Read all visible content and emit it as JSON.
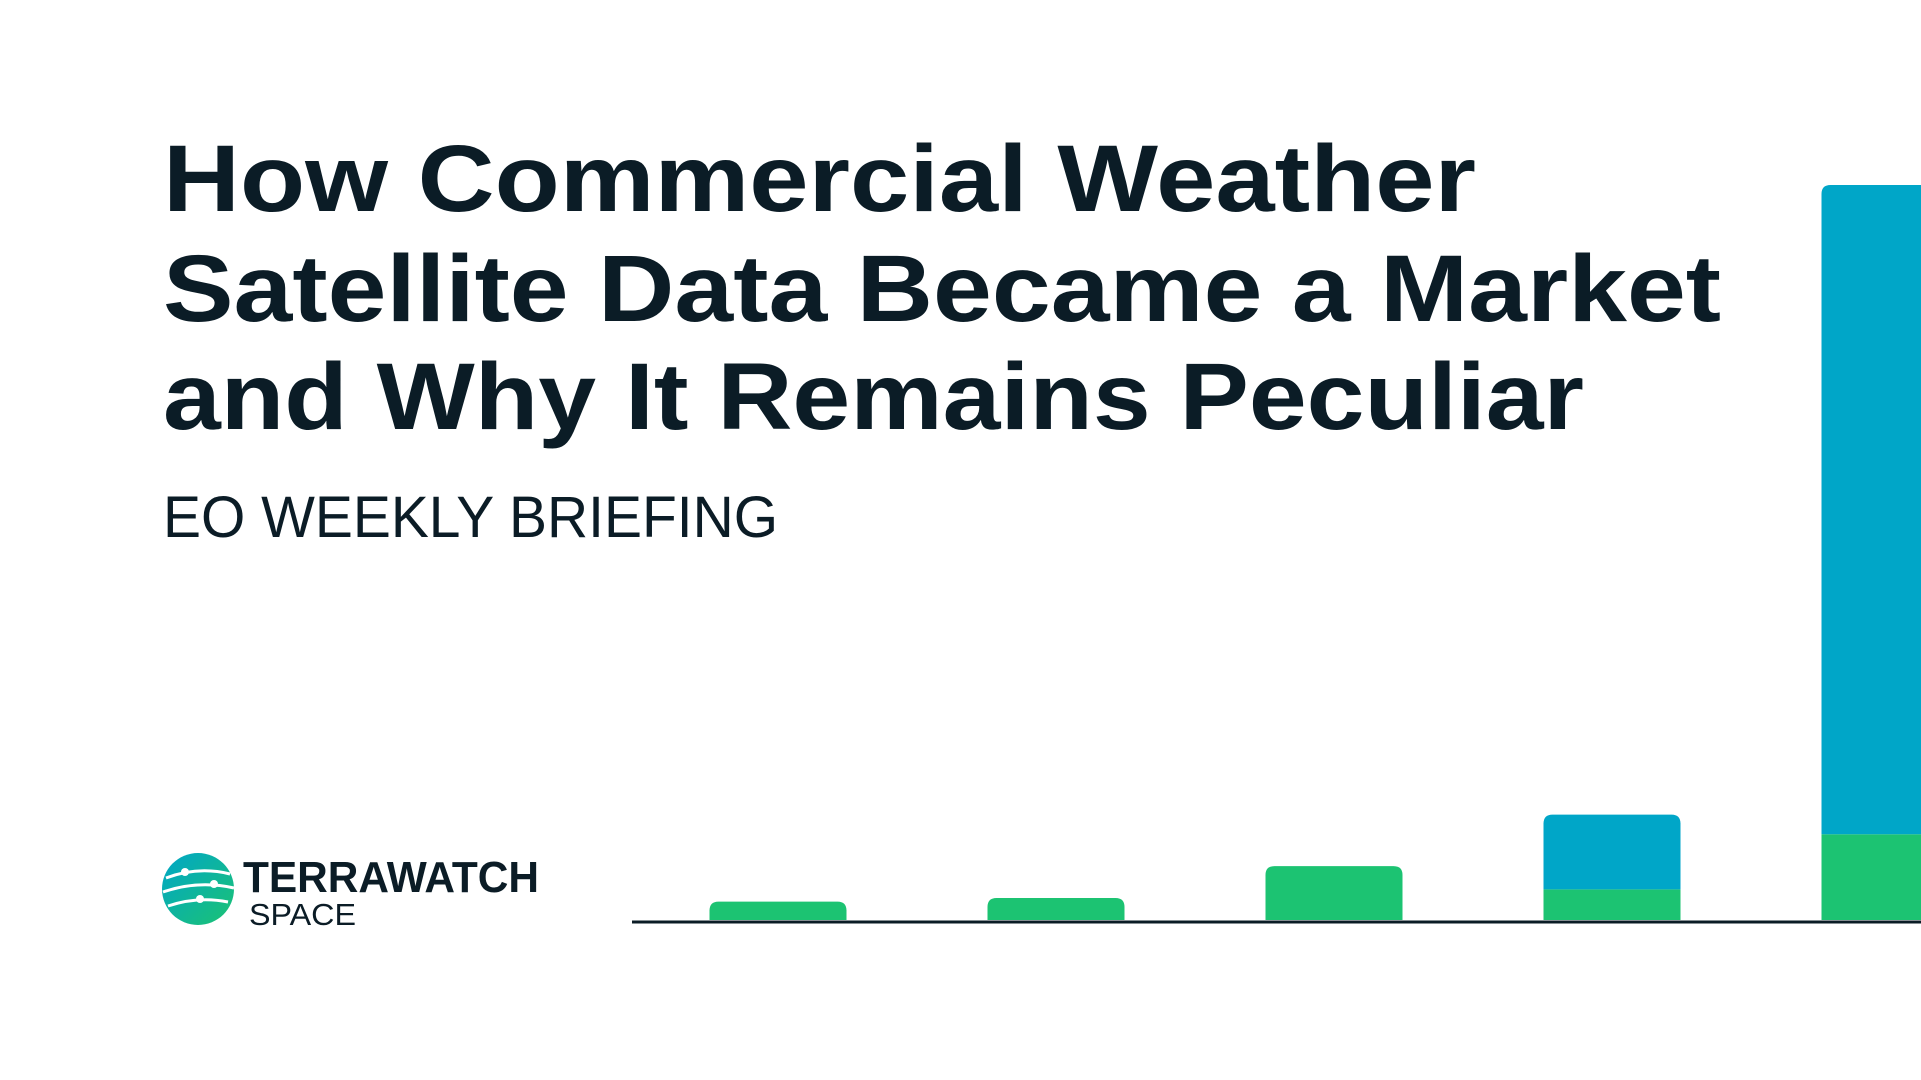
{
  "header": {
    "title_lines": [
      "How Commercial Weather",
      "Satellite Data Became a Market",
      "and Why It Remains Peculiar"
    ],
    "subtitle": "EO WEEKLY BRIEFING"
  },
  "logo": {
    "name": "TERRAWATCH",
    "sub": "SPACE"
  },
  "chart_data": {
    "type": "bar",
    "stacked": true,
    "categories": [
      null,
      null,
      null,
      null,
      null
    ],
    "series": [
      {
        "color": "#1cc372",
        "values": [
          15,
          18,
          44,
          25,
          70
        ]
      },
      {
        "color": "#00a6c8",
        "values": [
          0,
          0,
          0,
          61,
          530
        ]
      }
    ],
    "ylim": [
      0,
      600
    ]
  }
}
